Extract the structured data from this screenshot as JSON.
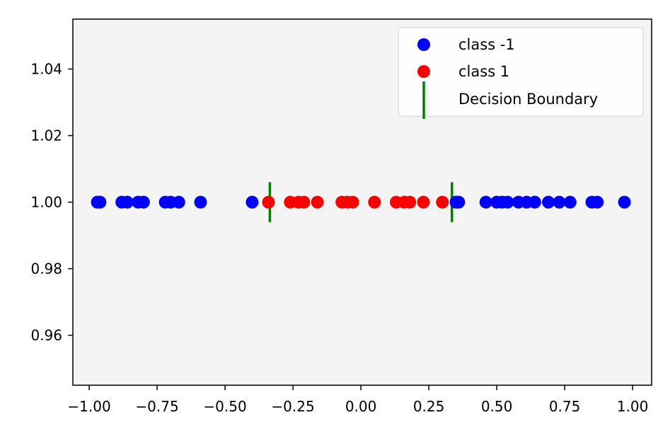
{
  "chart_data": {
    "type": "scatter",
    "title": "",
    "xlabel": "",
    "ylabel": "",
    "xlim": [
      -1.06,
      1.07
    ],
    "ylim": [
      0.945,
      1.055
    ],
    "grid": false,
    "legend_position": "top-right",
    "background_color": "#f4f4f4",
    "xticks": [
      -1.0,
      -0.75,
      -0.5,
      -0.25,
      0.0,
      0.25,
      0.5,
      0.75,
      1.0
    ],
    "xtick_labels": [
      "−1.00",
      "−0.75",
      "−0.50",
      "−0.25",
      "0.00",
      "0.25",
      "0.50",
      "0.75",
      "1.00"
    ],
    "yticks": [
      0.96,
      0.98,
      1.0,
      1.02,
      1.04
    ],
    "ytick_labels": [
      "0.96",
      "0.98",
      "1.00",
      "1.02",
      "1.04"
    ],
    "series": [
      {
        "name": "class -1",
        "color": "#0000ff",
        "marker": "circle",
        "x": [
          -0.97,
          -0.96,
          -0.88,
          -0.86,
          -0.82,
          -0.8,
          -0.72,
          -0.7,
          -0.67,
          -0.59,
          -0.4,
          0.35,
          0.36,
          0.46,
          0.5,
          0.52,
          0.54,
          0.58,
          0.61,
          0.64,
          0.69,
          0.73,
          0.77,
          0.85,
          0.87,
          0.97
        ],
        "y": [
          1.0,
          1.0,
          1.0,
          1.0,
          1.0,
          1.0,
          1.0,
          1.0,
          1.0,
          1.0,
          1.0,
          1.0,
          1.0,
          1.0,
          1.0,
          1.0,
          1.0,
          1.0,
          1.0,
          1.0,
          1.0,
          1.0,
          1.0,
          1.0,
          1.0,
          1.0
        ]
      },
      {
        "name": "class 1",
        "color": "#ff0000",
        "marker": "circle",
        "x": [
          -0.34,
          -0.26,
          -0.23,
          -0.21,
          -0.16,
          -0.07,
          -0.05,
          -0.03,
          0.05,
          0.13,
          0.16,
          0.18,
          0.23,
          0.3
        ],
        "y": [
          1.0,
          1.0,
          1.0,
          1.0,
          1.0,
          1.0,
          1.0,
          1.0,
          1.0,
          1.0,
          1.0,
          1.0,
          1.0,
          1.0
        ]
      }
    ],
    "decision_boundary": {
      "name": "Decision Boundary",
      "color": "#008000",
      "x": [
        -0.335,
        0.335
      ],
      "y_center": 1.0,
      "y_extent": [
        0.994,
        1.006
      ]
    }
  },
  "legend": {
    "items": [
      {
        "label": "class -1",
        "kind": "dot",
        "color": "#0000ff"
      },
      {
        "label": "class 1",
        "kind": "dot",
        "color": "#ff0000"
      },
      {
        "label": "Decision Boundary",
        "kind": "vline",
        "color": "#008000"
      }
    ]
  }
}
